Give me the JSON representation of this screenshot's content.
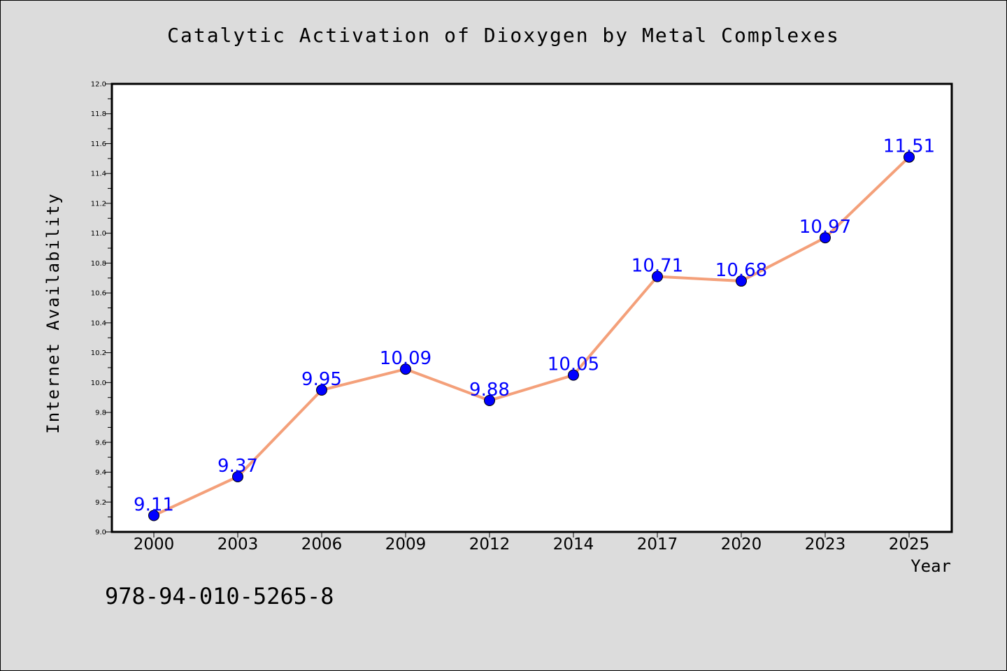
{
  "chart_data": {
    "type": "line",
    "title": "Catalytic Activation of Dioxygen by Metal Complexes",
    "xlabel": "Year",
    "ylabel": "Internet Availability",
    "categories": [
      "2000",
      "2003",
      "2006",
      "2009",
      "2012",
      "2014",
      "2017",
      "2020",
      "2023",
      "2025"
    ],
    "series": [
      {
        "values": [
          9.11,
          9.37,
          9.95,
          10.09,
          9.88,
          10.05,
          10.71,
          10.68,
          10.97,
          11.51
        ],
        "data_labels": [
          "9.11",
          "9.37",
          "9.95",
          "10.09",
          "9.88",
          "10.05",
          "10.71",
          "10.68",
          "10.97",
          "11.51"
        ]
      }
    ],
    "ylim": [
      9.0,
      12.0
    ],
    "yticks": [
      "9.0",
      "9.2",
      "9.4",
      "9.6",
      "9.8",
      "10.0",
      "10.2",
      "10.4",
      "10.6",
      "10.8",
      "11.0",
      "11.2",
      "11.4",
      "11.6",
      "11.8",
      "12.0"
    ],
    "grid": false,
    "legend": "none",
    "line_color": "#f4a07a",
    "marker_color": "#0000ff",
    "label_color": "#0000ff"
  },
  "footer": {
    "isbn": "978-94-010-5265-8"
  }
}
